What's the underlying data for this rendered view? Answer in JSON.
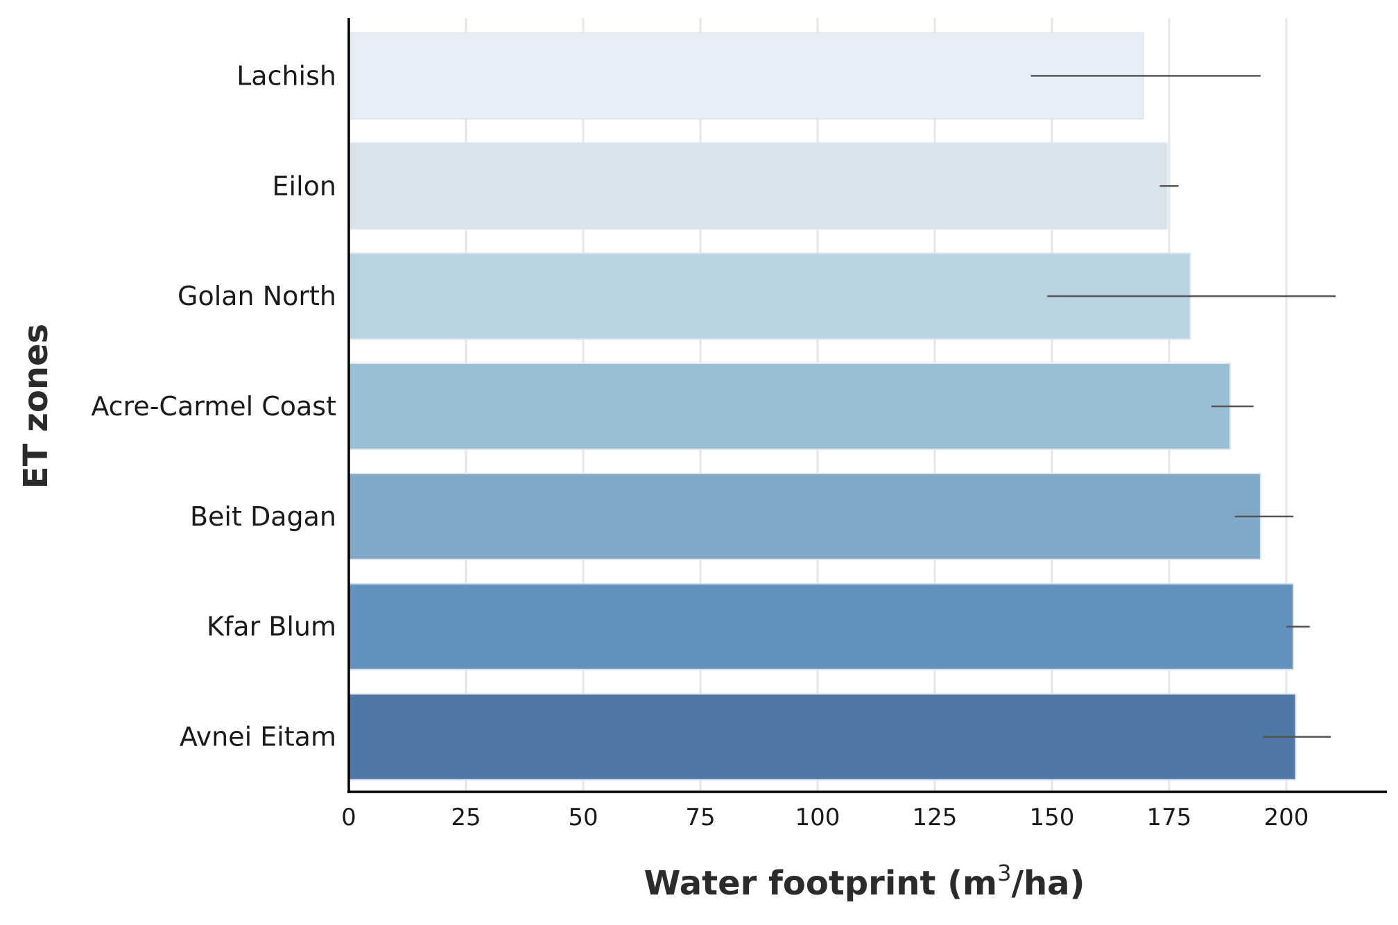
{
  "chart_data": {
    "type": "bar",
    "orientation": "horizontal",
    "xlabel": "Water footprint (m",
    "xlabel_sup": "3",
    "xlabel_end": "/ha)",
    "ylabel": "ET zones",
    "xlim": [
      0,
      221
    ],
    "xticks": [
      "0",
      "25",
      "50",
      "75",
      "100",
      "125",
      "150",
      "175",
      "200"
    ],
    "grid": "vertical",
    "categories": [
      "Lachish",
      "Eilon",
      "Golan North",
      "Acre-Carmel Coast",
      "Beit Dagan",
      "Kfar Blum",
      "Avnei Eitam"
    ],
    "values": [
      169.5,
      174.5,
      179.5,
      188,
      194.5,
      201.5,
      202
    ],
    "error_low": [
      145.5,
      173,
      149,
      184,
      189,
      200,
      195
    ],
    "error_high": [
      194.5,
      177,
      210.5,
      193,
      201.5,
      205,
      209.5
    ],
    "colors": [
      "#e6eef7",
      "#d8e3ee",
      "#bad3e1",
      "#99bfd5",
      "#7fa8c9",
      "#6192bc",
      "#5078a4"
    ]
  }
}
